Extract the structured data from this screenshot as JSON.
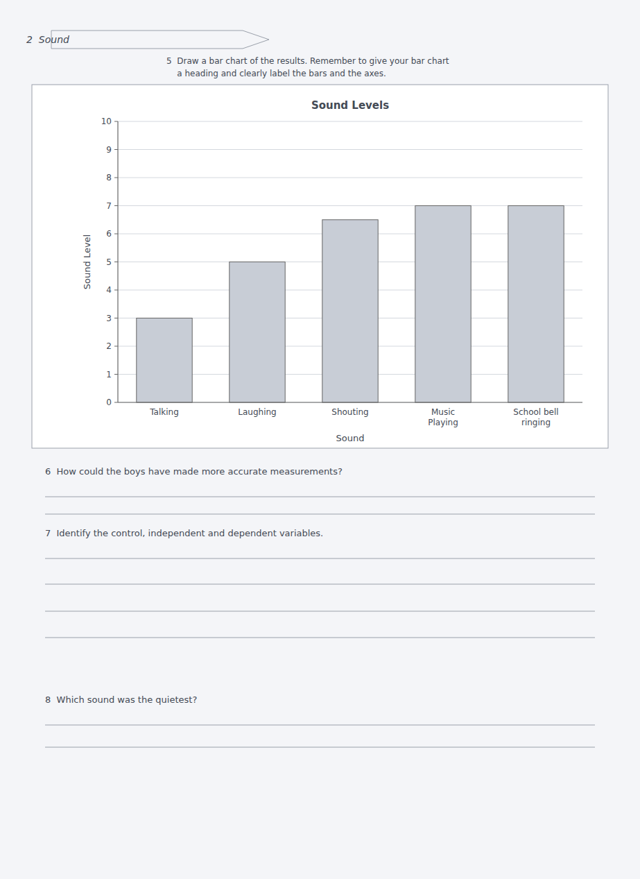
{
  "chart_data": {
    "type": "bar",
    "title": "Sound Levels",
    "x_label": "Sound",
    "y_label": "Sound Level",
    "categories": [
      "Talking",
      "Laughing",
      "Shouting",
      "Music\nPlaying",
      "School bell\nringing"
    ],
    "values": [
      3,
      5,
      6.5,
      7,
      7
    ],
    "color": "#c8cdd6",
    "ylim": [
      0,
      10
    ],
    "yticks": [
      0,
      1,
      2,
      3,
      4,
      5,
      6,
      7,
      8,
      9,
      10
    ],
    "grid": true
  },
  "page_text": [
    "2  Sound",
    "5  Draw a bar chart of the results. Remember to give your bar chart",
    "    a heading and clearly label the bars and the axes.",
    "6  How could the boys have made more accurate measurements?",
    "7  Identify the control, independent and dependent variables.",
    "8  Which sound was the quietest?"
  ]
}
